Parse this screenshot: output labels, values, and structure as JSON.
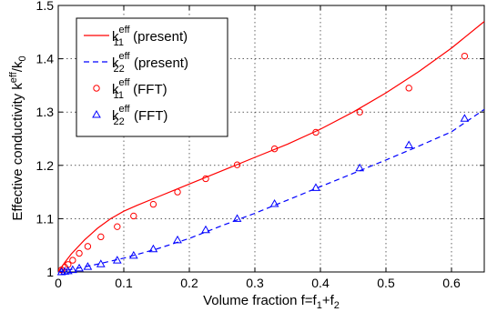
{
  "chart_data": {
    "type": "line",
    "title": "",
    "xlabel": {
      "text": "Volume fraction f=f",
      "sub1": "1",
      "mid": "+f",
      "sub2": "2"
    },
    "ylabel": {
      "text": "Effective conductivity k",
      "sup": "eff",
      "tail": "/k",
      "sub": "0"
    },
    "xlim": [
      0,
      0.65
    ],
    "ylim": [
      1.0,
      1.5
    ],
    "xticks": [
      0,
      0.1,
      0.2,
      0.3,
      0.4,
      0.5,
      0.6
    ],
    "xtick_labels": [
      "0",
      "0.1",
      "0.2",
      "0.3",
      "0.4",
      "0.5",
      "0.6"
    ],
    "yticks": [
      1.0,
      1.1,
      1.2,
      1.3,
      1.4,
      1.5
    ],
    "ytick_labels": [
      "1",
      "1.1",
      "1.2",
      "1.3",
      "1.4",
      "1.5"
    ],
    "grid": true,
    "legend_position": "top-left",
    "series": [
      {
        "name": "k11 eff (present)",
        "legend": {
          "base": "k",
          "sup": "eff",
          "sub": "11",
          "suffix": " (present)"
        },
        "style": "solid-line",
        "color": "#ff0000",
        "x": [
          0.0,
          0.01,
          0.02,
          0.04,
          0.06,
          0.08,
          0.1,
          0.12,
          0.15,
          0.18,
          0.2,
          0.25,
          0.3,
          0.35,
          0.4,
          0.45,
          0.5,
          0.55,
          0.6,
          0.65
        ],
        "y": [
          1.0,
          1.018,
          1.034,
          1.06,
          1.082,
          1.1,
          1.114,
          1.125,
          1.14,
          1.155,
          1.165,
          1.19,
          1.215,
          1.24,
          1.268,
          1.3,
          1.336,
          1.376,
          1.42,
          1.47
        ]
      },
      {
        "name": "k22 eff (present)",
        "legend": {
          "base": "k",
          "sup": "eff",
          "sub": "22",
          "suffix": " (present)"
        },
        "style": "dashed-line",
        "color": "#0000ff",
        "x": [
          0.0,
          0.05,
          0.1,
          0.15,
          0.2,
          0.25,
          0.3,
          0.35,
          0.4,
          0.45,
          0.5,
          0.55,
          0.6,
          0.65
        ],
        "y": [
          1.0,
          1.012,
          1.026,
          1.043,
          1.063,
          1.087,
          1.11,
          1.135,
          1.16,
          1.185,
          1.21,
          1.236,
          1.263,
          1.305
        ]
      },
      {
        "name": "k11 eff (FFT)",
        "legend": {
          "base": "k",
          "sup": "eff",
          "sub": "11",
          "suffix": " (FFT)"
        },
        "style": "circle-markers",
        "color": "#ff0000",
        "x": [
          0.005,
          0.01,
          0.015,
          0.022,
          0.032,
          0.045,
          0.065,
          0.09,
          0.115,
          0.145,
          0.182,
          0.225,
          0.273,
          0.33,
          0.393,
          0.46,
          0.535,
          0.62
        ],
        "y": [
          1.004,
          1.009,
          1.014,
          1.022,
          1.035,
          1.048,
          1.066,
          1.085,
          1.105,
          1.127,
          1.15,
          1.175,
          1.201,
          1.231,
          1.262,
          1.3,
          1.345,
          1.405
        ]
      },
      {
        "name": "k22 eff (FFT)",
        "legend": {
          "base": "k",
          "sup": "eff",
          "sub": "22",
          "suffix": " (FFT)"
        },
        "style": "triangle-markers",
        "color": "#0000ff",
        "x": [
          0.005,
          0.01,
          0.015,
          0.022,
          0.032,
          0.045,
          0.065,
          0.09,
          0.115,
          0.145,
          0.182,
          0.225,
          0.273,
          0.33,
          0.393,
          0.46,
          0.535,
          0.62
        ],
        "y": [
          1.0,
          1.001,
          1.002,
          1.004,
          1.007,
          1.01,
          1.015,
          1.022,
          1.031,
          1.043,
          1.06,
          1.079,
          1.1,
          1.128,
          1.158,
          1.195,
          1.238,
          1.288
        ]
      }
    ]
  }
}
